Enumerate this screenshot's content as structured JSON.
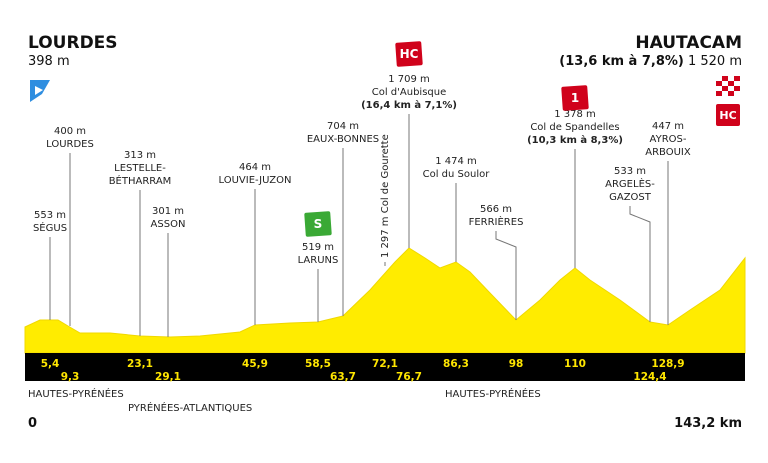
{
  "start": {
    "name": "LOURDES",
    "altitude": "398 m"
  },
  "finish": {
    "name": "HAUTACAM",
    "climb": "(13,6 km à 7,8%)",
    "altitude": "1 520 m",
    "category": "HC"
  },
  "points": [
    {
      "altitude": "553 m",
      "name": [
        "SÉGUS"
      ],
      "km": "5,4"
    },
    {
      "altitude": "400 m",
      "name": [
        "LOURDES"
      ],
      "km": "9,3"
    },
    {
      "altitude": "313 m",
      "name": [
        "LESTELLE-",
        "BÉTHARRAM"
      ],
      "km": "23,1"
    },
    {
      "altitude": "301 m",
      "name": [
        "ASSON"
      ],
      "km": "29,1"
    },
    {
      "altitude": "464 m",
      "name": [
        "LOUVIE-JUZON"
      ],
      "km": "45,9"
    },
    {
      "altitude": "519 m",
      "name": [
        "LARUNS"
      ],
      "km": "58,5",
      "category": "S"
    },
    {
      "altitude": "704 m",
      "name": [
        "EAUX-BONNES"
      ],
      "km": "63,7"
    },
    {
      "altitude": "1 297 m",
      "name": [
        "Col de Gourette"
      ],
      "km": "72,1"
    },
    {
      "altitude": "1 709 m",
      "name": [
        "Col d'Aubisque"
      ],
      "climb": "(16,4 km à 7,1%)",
      "km": "76,7",
      "category": "HC"
    },
    {
      "altitude": "1 474 m",
      "name": [
        "Col du Soulor"
      ],
      "km": "86,3"
    },
    {
      "altitude": "566 m",
      "name": [
        "FERRIÈRES"
      ],
      "km": "98"
    },
    {
      "altitude": "1 378 m",
      "name": [
        "Col de Spandelles"
      ],
      "climb": "(10,3 km à 8,3%)",
      "km": "110",
      "category": "1"
    },
    {
      "altitude": "533 m",
      "name": [
        "ARGELÈS-",
        "GAZOST"
      ],
      "km": "124,4"
    },
    {
      "altitude": "447 m",
      "name": [
        "AYROS-",
        "ARBOUIX"
      ],
      "km": "128,9"
    }
  ],
  "regions": [
    "HAUTES-PYRÉNÉES",
    "PYRÉNÉES-ATLANTIQUES",
    "HAUTES-PYRÉNÉES"
  ],
  "distance_start": "0",
  "distance_end": "143,2 km"
}
